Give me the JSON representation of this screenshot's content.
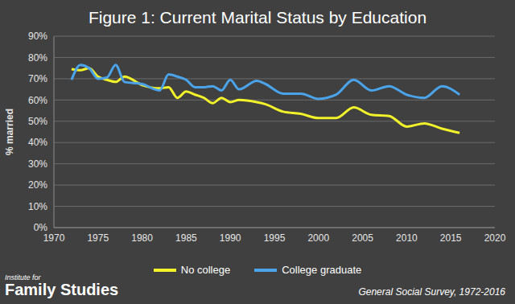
{
  "chart_data": {
    "type": "line",
    "title": "Figure 1: Current Marital Status by Education",
    "y_label": "% married",
    "source": "General Social Survey, 1972-2016",
    "logo": {
      "line1": "Institute for",
      "line2": "Family Studies"
    },
    "x": [
      1972,
      1973,
      1974,
      1975,
      1976,
      1977,
      1978,
      1980,
      1982,
      1983,
      1984,
      1985,
      1986,
      1987,
      1988,
      1989,
      1990,
      1991,
      1993,
      1994,
      1996,
      1998,
      2000,
      2002,
      2004,
      2006,
      2008,
      2010,
      2012,
      2014,
      2016
    ],
    "series": [
      {
        "name": "No college",
        "color": "#f2f22a",
        "line_style": "smooth",
        "values": [
          74.5,
          74,
          75,
          71,
          69.5,
          68.5,
          71,
          67,
          65.5,
          66,
          61,
          64,
          62.5,
          61,
          58.5,
          61,
          59,
          60,
          59,
          58,
          54.5,
          53.5,
          51.5,
          51.5,
          56.5,
          53,
          52.5,
          47.5,
          49,
          46.5,
          44.5
        ]
      },
      {
        "name": "College graduate",
        "color": "#4ba3ea",
        "line_style": "smooth",
        "values": [
          69.5,
          76.5,
          75,
          70,
          70.5,
          76.5,
          68.5,
          67.5,
          64.5,
          72,
          71,
          69.5,
          66,
          66,
          66.5,
          64.5,
          69.5,
          65,
          69,
          67.5,
          63,
          63,
          60.5,
          62.5,
          69.5,
          64.5,
          66.5,
          62.5,
          61,
          66.5,
          62.5
        ]
      }
    ],
    "xlim": [
      1970,
      2020
    ],
    "xticks": [
      1970,
      1975,
      1980,
      1985,
      1990,
      1995,
      2000,
      2005,
      2010,
      2015,
      2020
    ],
    "ylim": [
      0,
      90
    ],
    "yticks": [
      {
        "value": 0,
        "label": "0%"
      },
      {
        "value": 10,
        "label": "10%"
      },
      {
        "value": 20,
        "label": "20%"
      },
      {
        "value": 30,
        "label": "30%"
      },
      {
        "value": 40,
        "label": "40%"
      },
      {
        "value": 50,
        "label": "50%"
      },
      {
        "value": 60,
        "label": "60%"
      },
      {
        "value": 70,
        "label": "70%"
      },
      {
        "value": 80,
        "label": "80%"
      },
      {
        "value": 90,
        "label": "90%"
      }
    ],
    "grid": true,
    "legend": "bottom"
  }
}
